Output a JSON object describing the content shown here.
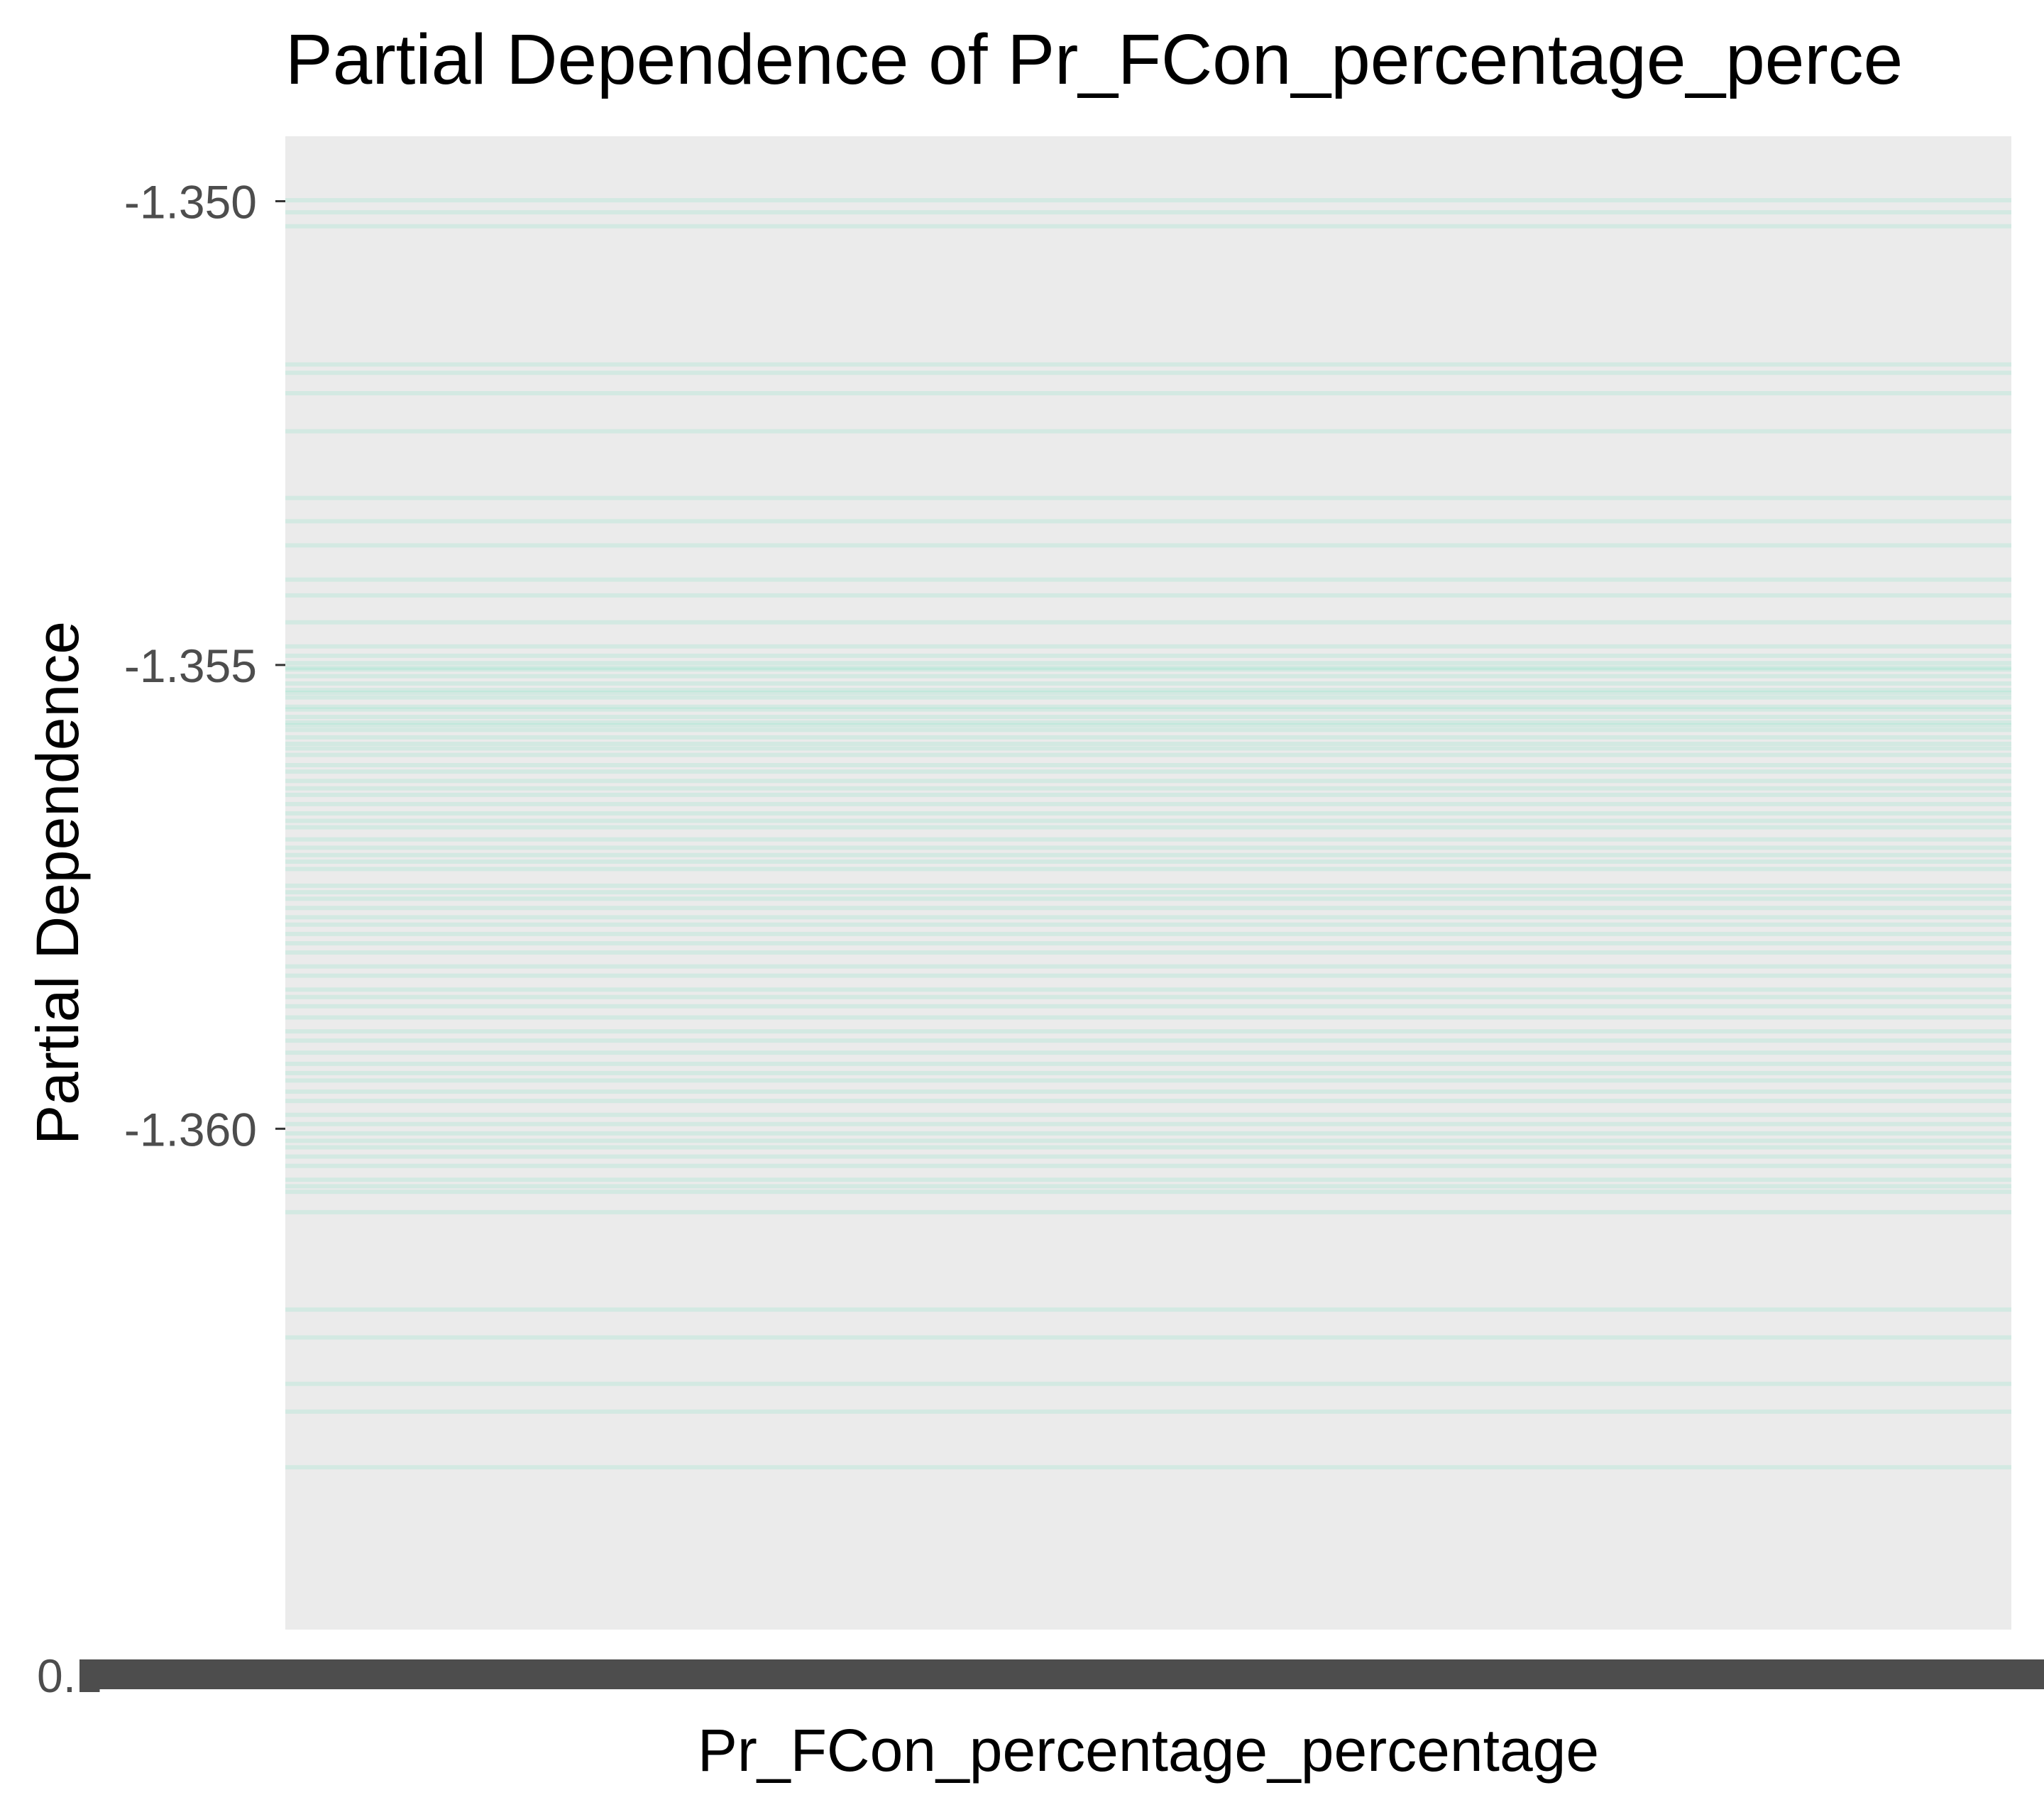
{
  "chart_data": {
    "type": "line",
    "title": "Partial Dependence of Pr_FCon_percentage_perce",
    "xlabel": "Pr_FCon_percentage_percentage",
    "ylabel": "Partial Dependence",
    "ylim": [
      -1.3654,
      -1.3493
    ],
    "yticks": [
      {
        "value": -1.35,
        "label": "-1.350"
      },
      {
        "value": -1.355,
        "label": "-1.355"
      },
      {
        "value": -1.36,
        "label": "-1.360"
      }
    ],
    "x_tick_label": "0.1",
    "line_color": "#7fe5c4",
    "panel_background": "#ebebeb",
    "series_description_values": [
      -1.34999,
      -1.35012,
      -1.35027,
      -1.35176,
      -1.35185,
      -1.35207,
      -1.35248,
      -1.3532,
      -1.35345,
      -1.35371,
      -1.35408,
      -1.35425,
      -1.35454,
      -1.3548,
      -1.35503,
      -1.3553,
      -1.35545,
      -1.35565,
      -1.3557,
      -1.3559,
      -1.3549,
      -1.35498,
      -1.35505,
      -1.35512,
      -1.3552,
      -1.35527,
      -1.35535,
      -1.35548,
      -1.35556,
      -1.35562,
      -1.35578,
      -1.35585,
      -1.35597,
      -1.35608,
      -1.35615,
      -1.35625,
      -1.35633,
      -1.3564,
      -1.3565,
      -1.3566,
      -1.35668,
      -1.35675,
      -1.35688,
      -1.35697,
      -1.35705,
      -1.35712,
      -1.3572,
      -1.35738,
      -1.35745,
      -1.35752,
      -1.35762,
      -1.35772,
      -1.3578,
      -1.3579,
      -1.358,
      -1.3581,
      -1.35825,
      -1.35835,
      -1.3585,
      -1.35858,
      -1.35868,
      -1.3588,
      -1.35895,
      -1.35905,
      -1.35918,
      -1.3593,
      -1.3594,
      -1.35948,
      -1.3596,
      -1.3597,
      -1.35985,
      -1.35995,
      -1.36005,
      -1.36013,
      -1.3602,
      -1.3603,
      -1.3604,
      -1.36055,
      -1.36062,
      -1.36068,
      -1.3609,
      -1.36195,
      -1.36225,
      -1.36275,
      -1.36305,
      -1.36365
    ]
  }
}
